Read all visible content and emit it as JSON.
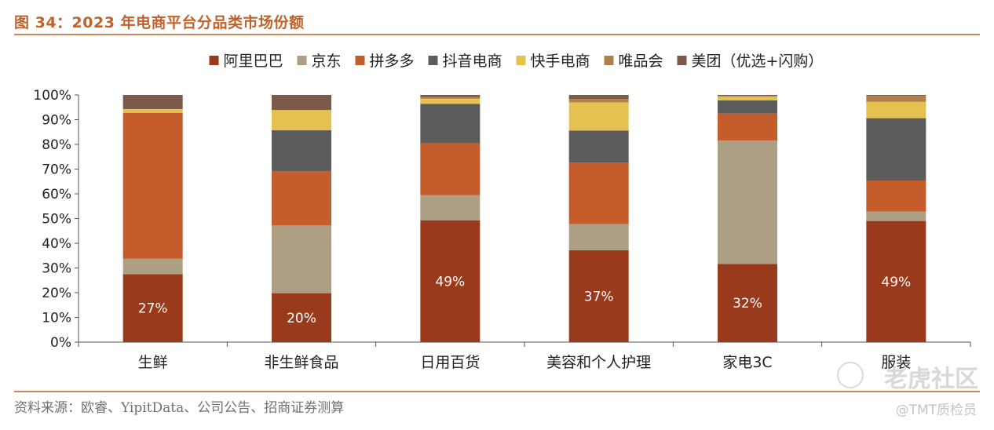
{
  "header": {
    "figure_title": "图 34：2023 年电商平台分品类市场份额"
  },
  "footer": {
    "source": "资料来源：欧睿、YipitData、公司公告、招商证券测算",
    "watermark": "老虎社区",
    "handle": "@TMT质检员"
  },
  "chart_data": {
    "type": "bar",
    "stacked": true,
    "percent": true,
    "categories": [
      "生鲜",
      "非生鲜食品",
      "日用百货",
      "美容和个人护理",
      "家电3C",
      "服装"
    ],
    "series": [
      {
        "name": "阿里巴巴",
        "color": "#9a3a1c",
        "values": [
          27.5,
          19.8,
          49.3,
          37.2,
          31.6,
          49.0
        ]
      },
      {
        "name": "京东",
        "color": "#ac9f83",
        "values": [
          6.3,
          27.4,
          10.2,
          10.5,
          50.0,
          3.8
        ]
      },
      {
        "name": "拼多多",
        "color": "#c45d2b",
        "values": [
          59.0,
          21.9,
          21.0,
          24.9,
          10.9,
          12.6
        ]
      },
      {
        "name": "抖音电商",
        "color": "#5c5c5c",
        "values": [
          0.0,
          16.6,
          15.9,
          13.0,
          5.3,
          25.2
        ]
      },
      {
        "name": "快手电商",
        "color": "#e4c150",
        "values": [
          1.5,
          8.2,
          2.1,
          11.4,
          1.5,
          6.6
        ]
      },
      {
        "name": "唯品会",
        "color": "#b07f4c",
        "values": [
          0.0,
          0.0,
          0.6,
          1.4,
          0.3,
          2.5
        ]
      },
      {
        "name": "美团（优选+闪购）",
        "color": "#7c5a4a",
        "values": [
          5.7,
          6.1,
          0.9,
          1.6,
          0.4,
          0.3
        ]
      }
    ],
    "data_labels": [
      "27%",
      "20%",
      "49%",
      "37%",
      "32%",
      "49%"
    ],
    "y_ticks": [
      "0%",
      "10%",
      "20%",
      "30%",
      "40%",
      "50%",
      "60%",
      "70%",
      "80%",
      "90%",
      "100%"
    ],
    "ylim": [
      0,
      100
    ],
    "grid": false,
    "legend_position": "top"
  }
}
